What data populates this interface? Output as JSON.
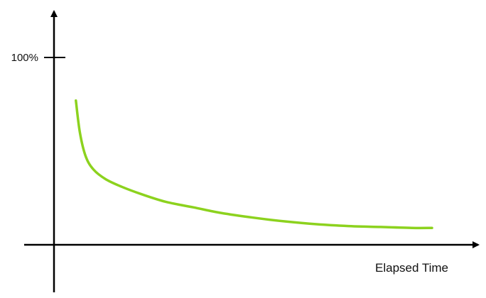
{
  "chart_data": {
    "type": "line",
    "xlabel": "Elapsed Time",
    "ylabel": "",
    "yticks": [
      {
        "value": 100,
        "label": "100%"
      }
    ],
    "xlim": [
      0,
      100
    ],
    "ylim": [
      0,
      120
    ],
    "grid": false,
    "series": [
      {
        "color": "#8cd21e",
        "x": [
          5.5,
          6.5,
          8,
          10,
          13,
          17,
          22,
          28,
          35,
          42,
          50,
          58,
          66,
          74,
          82,
          90,
          95
        ],
        "y": [
          77,
          60,
          47,
          40,
          35,
          31,
          27,
          23,
          20,
          17,
          14.5,
          12.5,
          11,
          10,
          9.5,
          9,
          9
        ]
      }
    ]
  },
  "colors": {
    "axis": "#000000",
    "line": "#8cd21e",
    "background": "#ffffff"
  }
}
